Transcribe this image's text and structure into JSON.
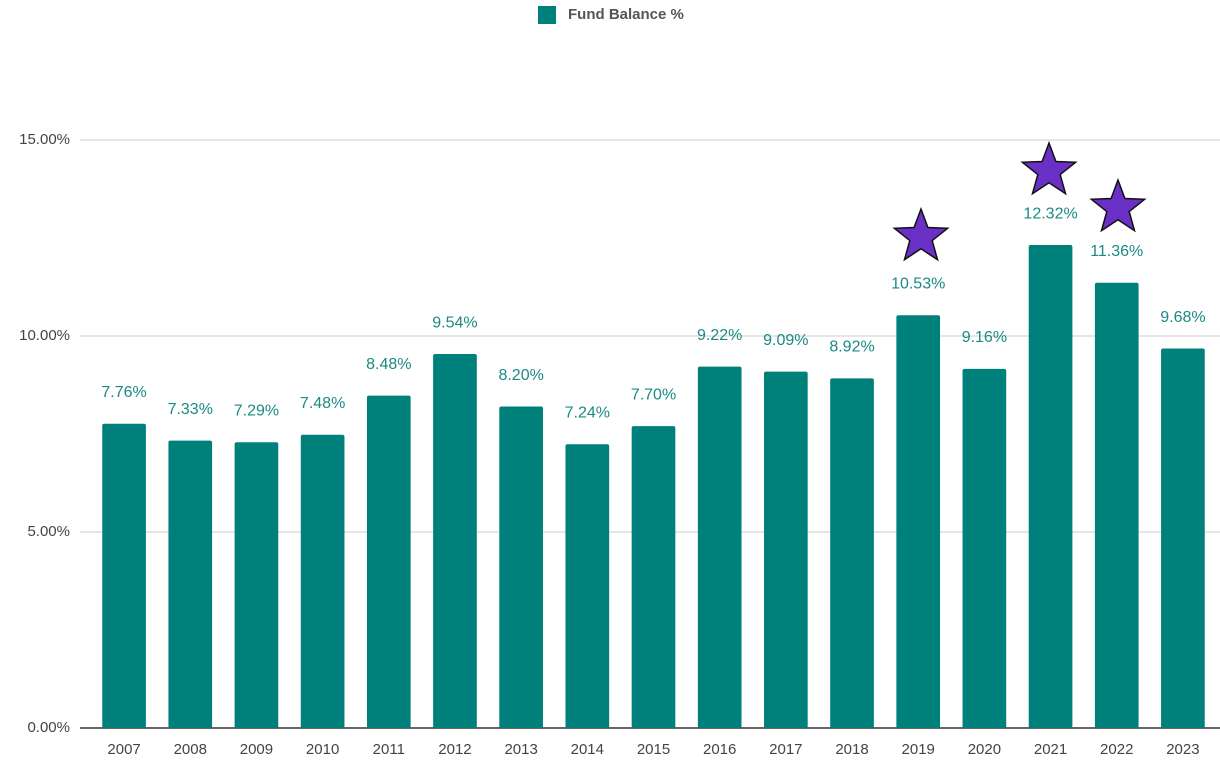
{
  "chart_data": {
    "type": "bar",
    "series": [
      {
        "name": "Fund Balance %",
        "color": "#00807b",
        "values": [
          7.76,
          7.33,
          7.29,
          7.48,
          8.48,
          9.54,
          8.2,
          7.24,
          7.7,
          9.22,
          9.09,
          8.92,
          10.53,
          9.16,
          12.32,
          11.36,
          9.68
        ],
        "value_labels": [
          "7.76%",
          "7.33%",
          "7.29%",
          "7.48%",
          "8.48%",
          "9.54%",
          "8.20%",
          "7.24%",
          "7.70%",
          "9.22%",
          "9.09%",
          "8.92%",
          "10.53%",
          "9.16%",
          "12.32%",
          "11.36%",
          "9.68%"
        ]
      }
    ],
    "categories": [
      "2007",
      "2008",
      "2009",
      "2010",
      "2011",
      "2012",
      "2013",
      "2014",
      "2015",
      "2016",
      "2017",
      "2018",
      "2019",
      "2020",
      "2021",
      "2022",
      "2023"
    ],
    "ylim": [
      0,
      15
    ],
    "yticks": [
      {
        "value": 0,
        "label": "0.00%"
      },
      {
        "value": 5,
        "label": "5.00%"
      },
      {
        "value": 10,
        "label": "10.00%"
      },
      {
        "value": 15,
        "label": "15.00%"
      }
    ],
    "grid": true,
    "legend": "top"
  }
}
